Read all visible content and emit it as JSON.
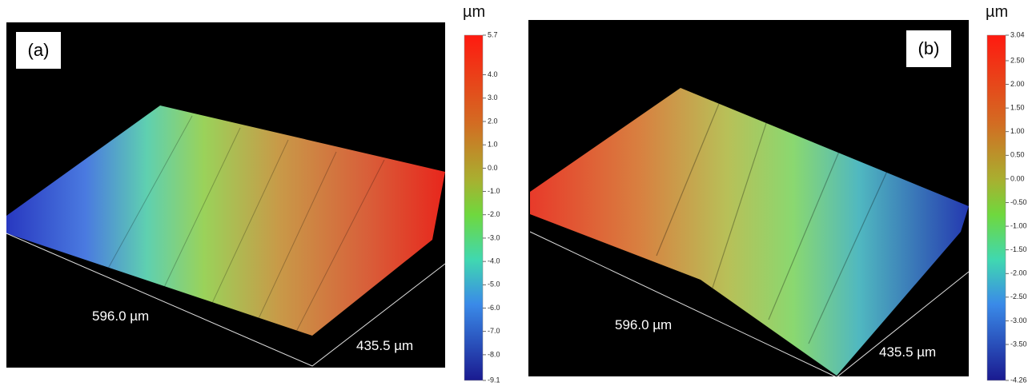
{
  "panels": [
    {
      "label": "(a)",
      "x_label": "596.0 µm",
      "y_label": "435.5 µm",
      "colorbar": {
        "unit": "µm",
        "ticks": [
          "5.7",
          "4.0",
          "3.0",
          "2.0",
          "1.0",
          "0.0",
          "-1.0",
          "-2.0",
          "-3.0",
          "-4.0",
          "-5.0",
          "-6.0",
          "-7.0",
          "-8.0",
          "-9.1"
        ]
      }
    },
    {
      "label": "(b)",
      "x_label": "596.0 µm",
      "y_label": "435.5 µm",
      "colorbar": {
        "unit": "µm",
        "ticks": [
          "3.04",
          "2.50",
          "2.00",
          "1.50",
          "1.00",
          "0.50",
          "0.00",
          "-0.50",
          "-1.00",
          "-1.50",
          "-2.00",
          "-2.50",
          "-3.00",
          "-3.50",
          "-4.26"
        ]
      }
    }
  ]
}
